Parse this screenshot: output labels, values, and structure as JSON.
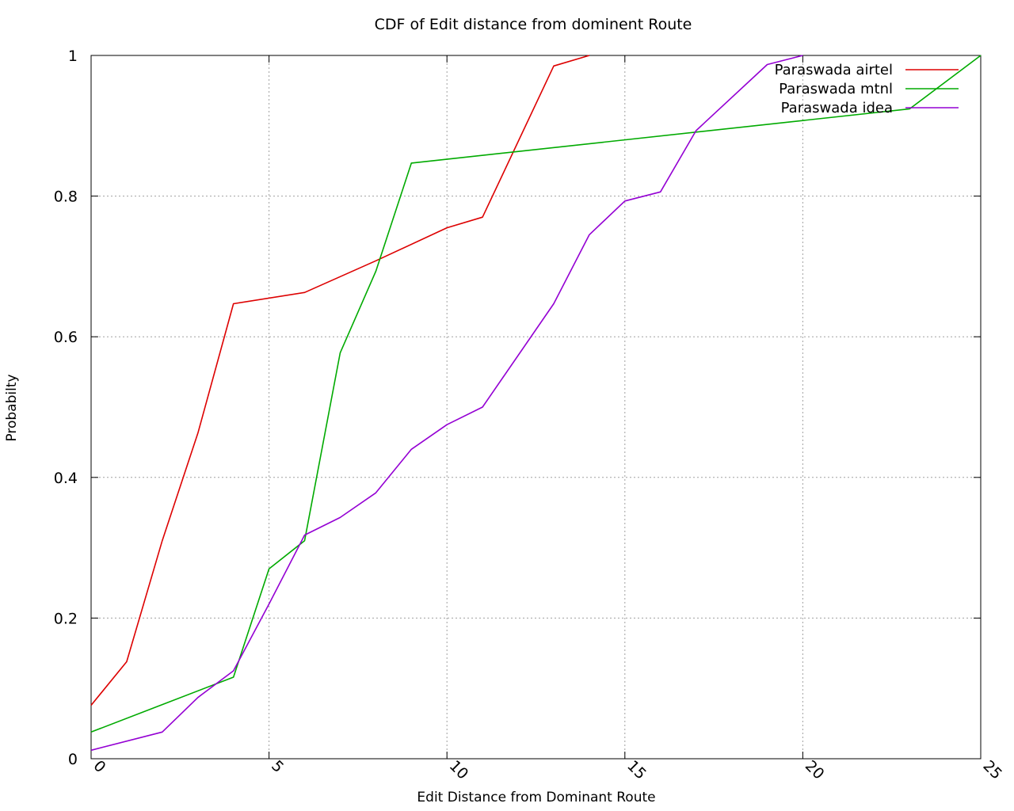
{
  "chart_data": {
    "type": "line",
    "title": "CDF of Edit distance from dominent Route",
    "xlabel": "Edit Distance from Dominant Route",
    "ylabel": "Probabilty",
    "xlim": [
      0,
      25
    ],
    "ylim": [
      0,
      1
    ],
    "xticks": [
      0,
      5,
      10,
      15,
      20,
      25
    ],
    "xtick_labels": [
      "0",
      "5",
      "10",
      "15",
      "20",
      "25"
    ],
    "yticks": [
      0,
      0.2,
      0.4,
      0.6,
      0.8,
      1
    ],
    "ytick_labels": [
      "0",
      "0.2",
      "0.4",
      "0.6",
      "0.8",
      "1"
    ],
    "grid": true,
    "legend_position": "top-right",
    "series": [
      {
        "name": "Paraswada airtel",
        "color": "#dd0000",
        "x": [
          0,
          1,
          2,
          3,
          4,
          6,
          8,
          10,
          11,
          13,
          14
        ],
        "y": [
          0.076,
          0.138,
          0.31,
          0.463,
          0.647,
          0.663,
          0.708,
          0.755,
          0.77,
          0.985,
          1.0
        ]
      },
      {
        "name": "Paraswada mtnl",
        "color": "#00aa00",
        "x": [
          0,
          4,
          5,
          6,
          7,
          8,
          9,
          23,
          25
        ],
        "y": [
          0.038,
          0.116,
          0.27,
          0.31,
          0.577,
          0.693,
          0.847,
          0.924,
          1.0
        ]
      },
      {
        "name": "Paraswada idea",
        "color": "#9400d3",
        "x": [
          0,
          2,
          3,
          4,
          5,
          6,
          7,
          8,
          9,
          10,
          11,
          13,
          14,
          15,
          16,
          17,
          19,
          20
        ],
        "y": [
          0.012,
          0.038,
          0.087,
          0.125,
          0.22,
          0.318,
          0.343,
          0.378,
          0.44,
          0.475,
          0.5,
          0.647,
          0.745,
          0.793,
          0.806,
          0.893,
          0.987,
          1.0
        ]
      }
    ]
  }
}
